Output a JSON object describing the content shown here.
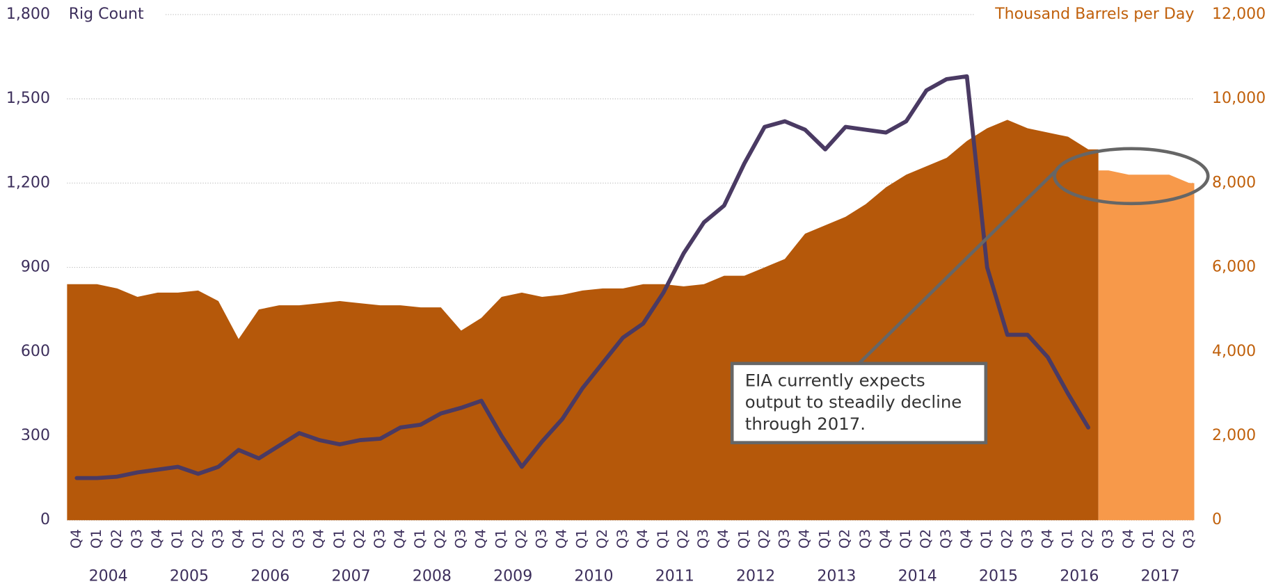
{
  "chart_data": {
    "type": "combo",
    "ylabel": "Rig Count",
    "y2label": "Thousand Barrels per Day",
    "annotation": [
      "EIA currently expects",
      "output to steadily decline",
      "through 2017."
    ],
    "categories": [
      "Q4",
      "Q1",
      "Q2",
      "Q3",
      "Q4",
      "Q1",
      "Q2",
      "Q3",
      "Q4",
      "Q1",
      "Q2",
      "Q3",
      "Q4",
      "Q1",
      "Q2",
      "Q3",
      "Q4",
      "Q1",
      "Q2",
      "Q3",
      "Q4",
      "Q1",
      "Q2",
      "Q3",
      "Q4",
      "Q1",
      "Q2",
      "Q3",
      "Q4",
      "Q1",
      "Q2",
      "Q3",
      "Q4",
      "Q1",
      "Q2",
      "Q3",
      "Q4",
      "Q1",
      "Q2",
      "Q3",
      "Q4",
      "Q1",
      "Q2",
      "Q3",
      "Q4",
      "Q1",
      "Q2",
      "Q3",
      "Q4",
      "Q1",
      "Q2",
      "Q3",
      "Q4",
      "Q1",
      "Q2",
      "Q3"
    ],
    "years": [
      "2004",
      "2005",
      "2006",
      "2007",
      "2008",
      "2009",
      "2010",
      "2011",
      "2012",
      "2013",
      "2014",
      "2015",
      "2016",
      "2017"
    ],
    "ylim": [
      0,
      1800
    ],
    "yticks": [
      0,
      300,
      600,
      900,
      {
        "value": 1200,
        "label": "1,200"
      },
      {
        "value": 1500,
        "label": "1,500"
      },
      {
        "value": 1800,
        "label": "1,800"
      }
    ],
    "y2lim": [
      0,
      12000
    ],
    "y2ticks": [
      0,
      {
        "value": 2000,
        "label": "2,000"
      },
      {
        "value": 4000,
        "label": "4,000"
      },
      {
        "value": 6000,
        "label": "6,000"
      },
      {
        "value": 8000,
        "label": "8,000"
      },
      {
        "value": 10000,
        "label": "10,000"
      },
      {
        "value": 12000,
        "label": "12,000"
      }
    ],
    "grid": true,
    "series": [
      {
        "type": "area",
        "axis": "y2",
        "color": "#b5580a",
        "values": [
          5600,
          5600,
          5500,
          5300,
          5400,
          5400,
          5450,
          5200,
          4300,
          5000,
          5100,
          5100,
          5150,
          5200,
          5150,
          5100,
          5100,
          5050,
          5050,
          4500,
          4800,
          5300,
          5400,
          5300,
          5350,
          5450,
          5500,
          5500,
          5600,
          5600,
          5550,
          5600,
          5800,
          5800,
          6000,
          6200,
          6800,
          7000,
          7200,
          7500,
          7900,
          8200,
          8400,
          8600,
          9000,
          9300,
          9500,
          9300,
          9200,
          9100,
          8800,
          null,
          null,
          null,
          null,
          null
        ]
      },
      {
        "type": "area",
        "axis": "y2",
        "color": "#f7994a",
        "values": [
          null,
          null,
          null,
          null,
          null,
          null,
          null,
          null,
          null,
          null,
          null,
          null,
          null,
          null,
          null,
          null,
          null,
          null,
          null,
          null,
          null,
          null,
          null,
          null,
          null,
          null,
          null,
          null,
          null,
          null,
          null,
          null,
          null,
          null,
          null,
          null,
          null,
          null,
          null,
          null,
          null,
          null,
          null,
          null,
          null,
          null,
          null,
          null,
          null,
          null,
          null,
          8300,
          8200,
          8200,
          8200,
          8000
        ]
      },
      {
        "type": "line",
        "axis": "y",
        "color": "#4a3a63",
        "values": [
          150,
          150,
          155,
          170,
          180,
          190,
          165,
          190,
          250,
          220,
          265,
          310,
          285,
          270,
          285,
          290,
          330,
          340,
          380,
          400,
          425,
          300,
          190,
          280,
          360,
          470,
          560,
          650,
          700,
          810,
          950,
          1060,
          1120,
          1270,
          1400,
          1420,
          1390,
          1320,
          1400,
          1390,
          1380,
          1420,
          1530,
          1570,
          1580,
          900,
          660,
          660,
          580,
          450,
          330,
          null,
          null,
          null,
          null,
          null
        ]
      }
    ]
  }
}
